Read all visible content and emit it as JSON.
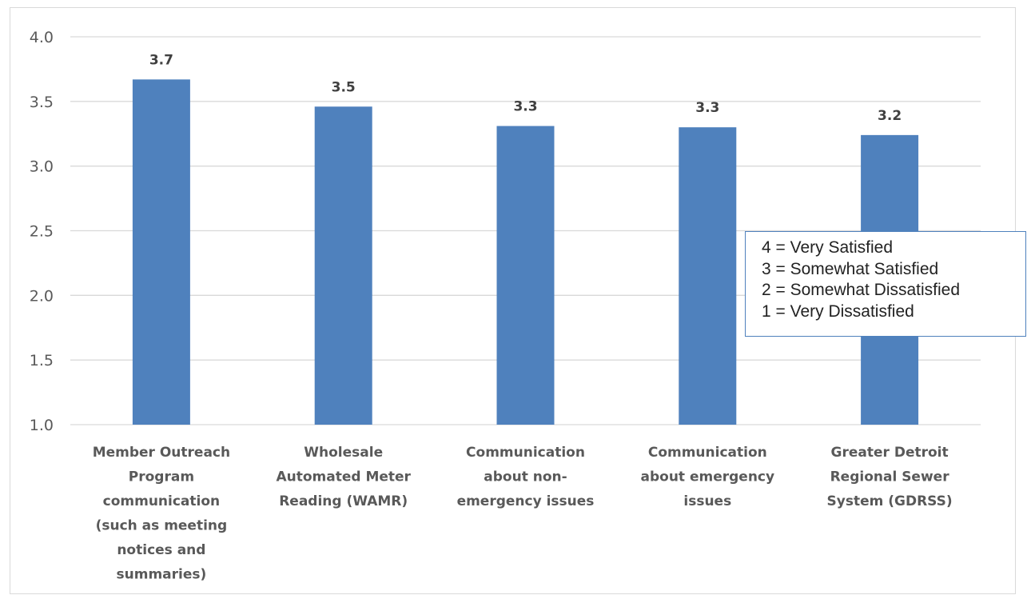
{
  "chart_data": {
    "type": "bar",
    "categories": [
      [
        "Member Outreach",
        "Program",
        "communication",
        "(such as meeting",
        "notices and",
        "summaries)"
      ],
      [
        "Wholesale",
        "Automated Meter",
        "Reading (WAMR)"
      ],
      [
        "Communication",
        "about non-",
        "emergency issues"
      ],
      [
        "Communication",
        "about emergency",
        "issues"
      ],
      [
        "Greater Detroit",
        "Regional Sewer",
        "System (GDRSS)"
      ]
    ],
    "values": [
      3.67,
      3.46,
      3.31,
      3.3,
      3.24
    ],
    "data_labels": [
      "3.7",
      "3.5",
      "3.3",
      "3.3",
      "3.2"
    ],
    "ylim": [
      1.0,
      4.0
    ],
    "yticks": [
      "1.0",
      "1.5",
      "2.0",
      "2.5",
      "3.0",
      "3.5",
      "4.0"
    ],
    "grid": true,
    "bar_color": "#4f81bd",
    "title": "",
    "xlabel": "",
    "ylabel": ""
  },
  "legend_note": {
    "lines": [
      "4 = Very Satisfied",
      "3 = Somewhat Satisfied",
      "2 = Somewhat Dissatisfied",
      "1 = Very Dissatisfied"
    ]
  }
}
